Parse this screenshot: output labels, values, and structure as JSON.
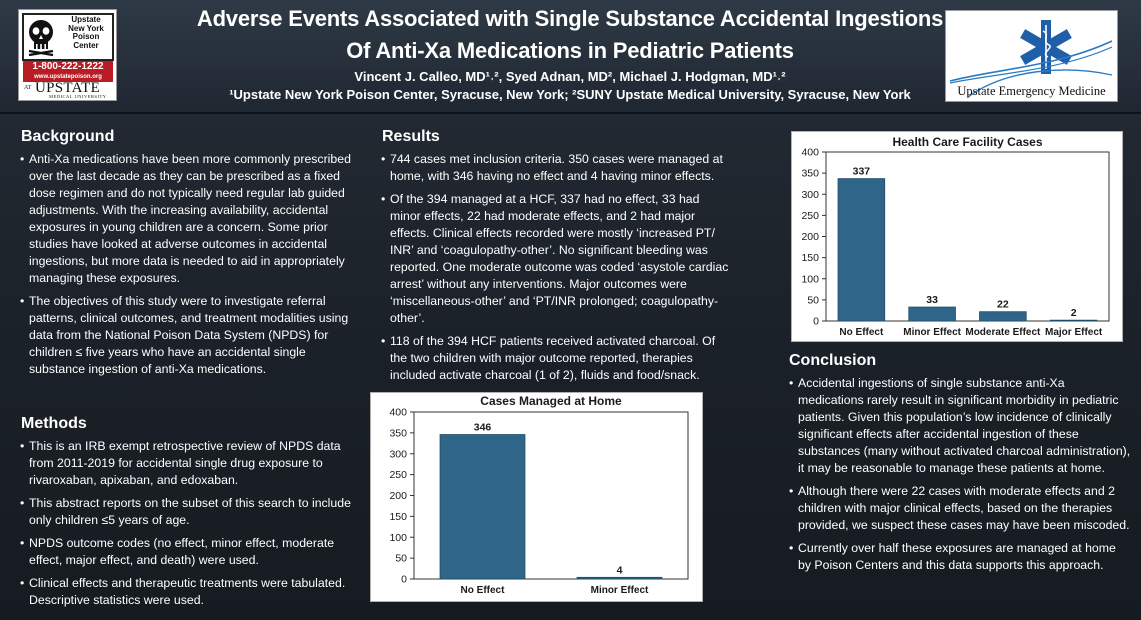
{
  "header": {
    "title_line1": "Adverse Events Associated with Single Substance Accidental Ingestions",
    "title_line2": "Of Anti-Xa Medications in Pediatric Patients",
    "authors": "Vincent J. Calleo, MD¹˒², Syed Adnan, MD², Michael J. Hodgman, MD¹˒²",
    "affiliations": "¹Upstate New York Poison Center, Syracuse, New York; ²SUNY Upstate Medical University, Syracuse, New York"
  },
  "logo_left": {
    "name_lines": [
      "Upstate",
      "New York",
      "Poison",
      "Center"
    ],
    "phone": "1-800-222-1222",
    "url": "www.upstatepoison.org",
    "at": "AT",
    "upstate": "UPSTATE",
    "university": "MEDICAL UNIVERSITY",
    "icon": "skull-icon"
  },
  "logo_right": {
    "text": "Upstate Emergency Medicine",
    "icon": "star-of-life-icon"
  },
  "background": {
    "title": "Background",
    "bullets": [
      "Anti-Xa medications have been more commonly prescribed over the last decade as they can be prescribed as a fixed dose regimen and do not typically need regular lab guided adjustments. With the increasing availability, accidental exposures in young children are a concern. Some prior studies have looked at adverse outcomes in accidental ingestions, but more data is needed to aid in appropriately managing these exposures.",
      "The objectives of this study were to investigate referral patterns, clinical outcomes, and treatment modalities using data from the National Poison Data System (NPDS) for children ≤ five years who have an accidental single substance ingestion of anti-Xa medications."
    ]
  },
  "methods": {
    "title": "Methods",
    "bullets": [
      "This is an IRB exempt retrospective review of NPDS data from 2011-2019 for accidental single drug exposure to rivaroxaban, apixaban, and edoxaban.",
      "This abstract reports on the subset of this search to include only children ≤5 years of age.",
      "NPDS outcome codes (no effect, minor effect, moderate effect, major effect, and death) were used.",
      "Clinical effects and therapeutic treatments were tabulated. Descriptive statistics were used."
    ]
  },
  "results": {
    "title": "Results",
    "bullets": [
      "744 cases met inclusion criteria. 350 cases were managed at home, with 346 having no effect and 4 having minor effects.",
      "Of the 394 managed at a HCF, 337 had no effect, 33 had minor effects, 22 had moderate effects, and 2 had major effects. Clinical effects recorded were mostly ‘increased PT/ INR’ and ‘coagulopathy-other’. No significant bleeding was reported. One moderate outcome was coded ‘asystole cardiac arrest’ without any interventions. Major outcomes were ‘miscellaneous-other’ and ‘PT/INR prolonged; coagulopathy-other’.",
      "118 of the 394 HCF patients received activated charcoal. Of the two children with major outcome reported, therapies included activate charcoal (1 of 2), fluids and food/snack."
    ]
  },
  "conclusion": {
    "title": "Conclusion",
    "bullets": [
      "Accidental ingestions of single substance anti-Xa medications rarely result in significant morbidity in pediatric patients. Given this population’s low incidence of clinically significant effects after accidental ingestion of these substances (many without activated charcoal administration), it may be reasonable to manage these patients at home.",
      "Although there were 22 cases with moderate effects and 2 children with major clinical effects, based on the therapies provided, we suspect these cases may have been miscoded.",
      "Currently over half these exposures are managed at home by Poison Centers and this data supports this approach."
    ]
  },
  "colors": {
    "bar": "#2e6589",
    "bar_edge": "#1f4a66"
  },
  "chart_data": [
    {
      "id": "home",
      "type": "bar",
      "title": "Cases Managed at Home",
      "categories": [
        "No Effect",
        "Minor Effect"
      ],
      "values": [
        346,
        4
      ],
      "ylim": [
        0,
        400
      ],
      "yticks": [
        0,
        50,
        100,
        150,
        200,
        250,
        300,
        350,
        400
      ],
      "xlabel": "",
      "ylabel": ""
    },
    {
      "id": "hcf",
      "type": "bar",
      "title": "Health Care Facility Cases",
      "categories": [
        "No Effect",
        "Minor Effect",
        "Moderate Effect",
        "Major Effect"
      ],
      "values": [
        337,
        33,
        22,
        2
      ],
      "ylim": [
        0,
        400
      ],
      "yticks": [
        0,
        50,
        100,
        150,
        200,
        250,
        300,
        350,
        400
      ],
      "xlabel": "",
      "ylabel": ""
    }
  ]
}
